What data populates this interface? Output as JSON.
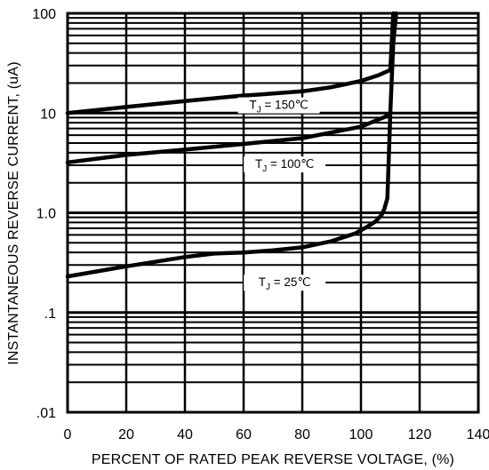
{
  "chart_data": {
    "type": "line",
    "xlabel": "PERCENT OF RATED PEAK REVERSE VOLTAGE, (%)",
    "ylabel": "INSTANTANEOUS REVERSE CURRENT, (uA)",
    "xlim": [
      0,
      140
    ],
    "ylim": [
      0.01,
      100
    ],
    "y_scale": "log",
    "grid": true,
    "x_ticks": [
      0,
      20,
      40,
      60,
      80,
      100,
      120,
      140
    ],
    "x_tick_labels": [
      "0",
      "20",
      "40",
      "60",
      "80",
      "100",
      "120",
      "140"
    ],
    "y_ticks": [
      0.01,
      0.1,
      1,
      10,
      100
    ],
    "y_tick_labels": [
      ".01",
      ".1",
      "1.0",
      "10",
      "100"
    ],
    "series": [
      {
        "name": "T",
        "subscript": "J",
        "suffix": " = 150℃",
        "x": [
          0,
          20,
          40,
          60,
          65,
          80,
          90,
          100,
          106,
          110,
          111
        ],
        "y": [
          10,
          11.5,
          13.2,
          15,
          15.3,
          16.5,
          18.2,
          21,
          24,
          27,
          100
        ]
      },
      {
        "name": "T",
        "subscript": "J",
        "suffix": " = 100℃",
        "x": [
          0,
          20,
          40,
          60,
          80,
          100,
          108,
          110
        ],
        "y": [
          3.2,
          3.8,
          4.3,
          4.9,
          5.6,
          7.3,
          9.1,
          10
        ]
      },
      {
        "name": "T",
        "subscript": "J",
        "suffix": " = 25℃",
        "x": [
          0,
          20,
          40,
          50,
          60,
          70,
          80,
          90,
          98,
          102,
          105,
          107,
          108,
          109,
          110,
          111,
          112
        ],
        "y": [
          0.23,
          0.29,
          0.36,
          0.39,
          0.4,
          0.42,
          0.45,
          0.52,
          0.62,
          0.72,
          0.82,
          0.95,
          1.1,
          1.4,
          10,
          50,
          100
        ]
      }
    ]
  }
}
